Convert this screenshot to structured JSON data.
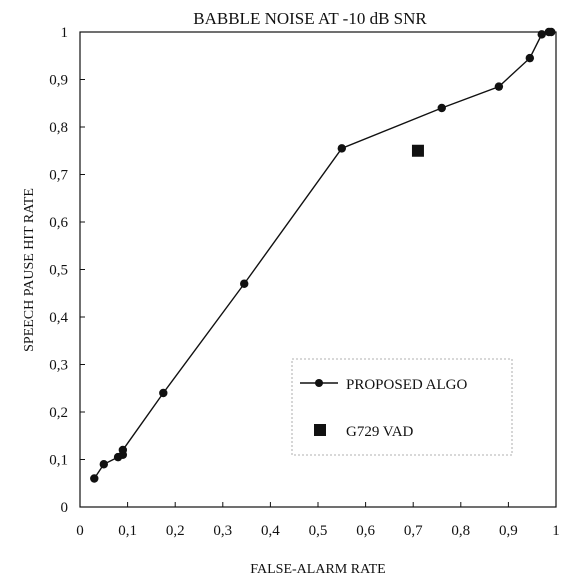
{
  "chart_data": {
    "type": "line",
    "title": "BABBLE NOISE AT -10 dB SNR",
    "xlabel": "FALSE-ALARM RATE",
    "ylabel": "SPEECH PAUSE  HIT RATE",
    "xlim": [
      0,
      1
    ],
    "ylim": [
      0,
      1
    ],
    "x_ticks": [
      "0",
      "0,1",
      "0,2",
      "0,3",
      "0,4",
      "0,5",
      "0,6",
      "0,7",
      "0,8",
      "0,9",
      "1"
    ],
    "y_ticks": [
      "0",
      "0,1",
      "0,2",
      "0,3",
      "0,4",
      "0,5",
      "0,6",
      "0,7",
      "0,8",
      "0,9",
      "1"
    ],
    "grid": false,
    "legend_position": "bottom-right",
    "series": [
      {
        "name": "PROPOSED ALGO",
        "marker": "circle",
        "line": true,
        "color": "#111111",
        "x": [
          0.03,
          0.05,
          0.08,
          0.09,
          0.09,
          0.175,
          0.345,
          0.55,
          0.76,
          0.88,
          0.945,
          0.97,
          0.985,
          0.99
        ],
        "y": [
          0.06,
          0.09,
          0.105,
          0.11,
          0.12,
          0.24,
          0.47,
          0.755,
          0.84,
          0.885,
          0.945,
          0.995,
          1.0,
          1.0
        ]
      },
      {
        "name": "G729 VAD",
        "marker": "square",
        "line": false,
        "color": "#111111",
        "x": [
          0.71
        ],
        "y": [
          0.75
        ]
      }
    ]
  }
}
